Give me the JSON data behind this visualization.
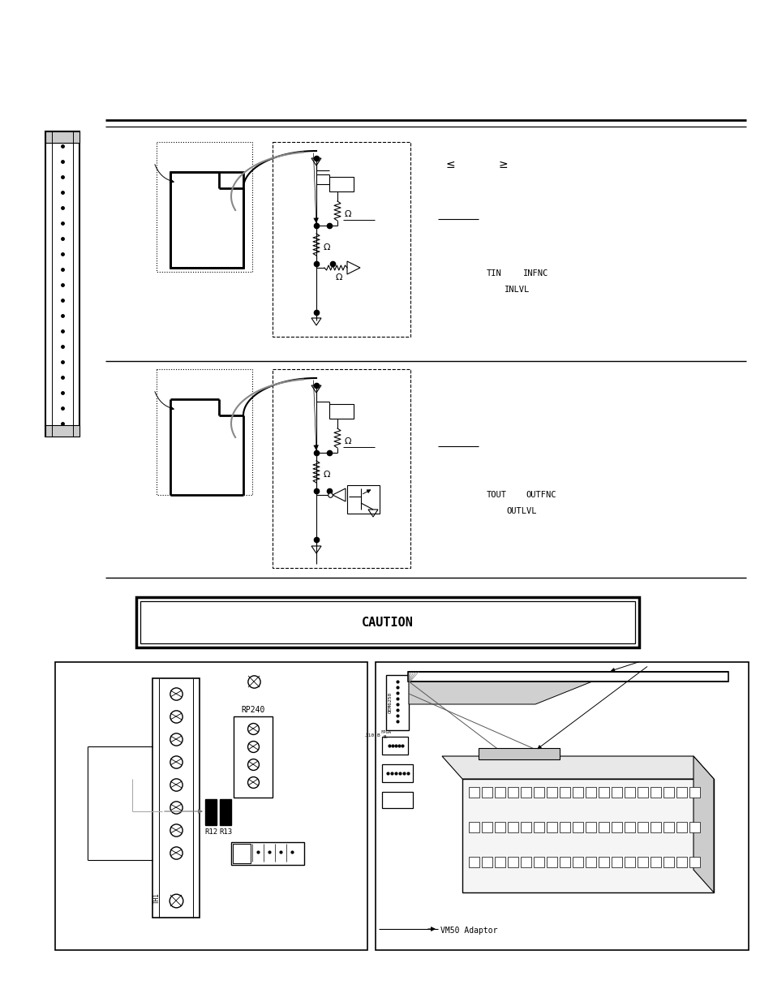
{
  "bg": "#ffffff",
  "lc": "#000000",
  "gray": "#888888",
  "lightgray": "#e0e0e0",
  "labels_in": {
    "tin": "TIN",
    "infnc": "INFNC",
    "inlvl": "INLVL"
  },
  "labels_out": {
    "tout": "TOUT",
    "outfnc": "OUTFNC",
    "outlvl": "OUTLVL"
  },
  "omega": "Ω",
  "le": "≤",
  "ge": "≥"
}
